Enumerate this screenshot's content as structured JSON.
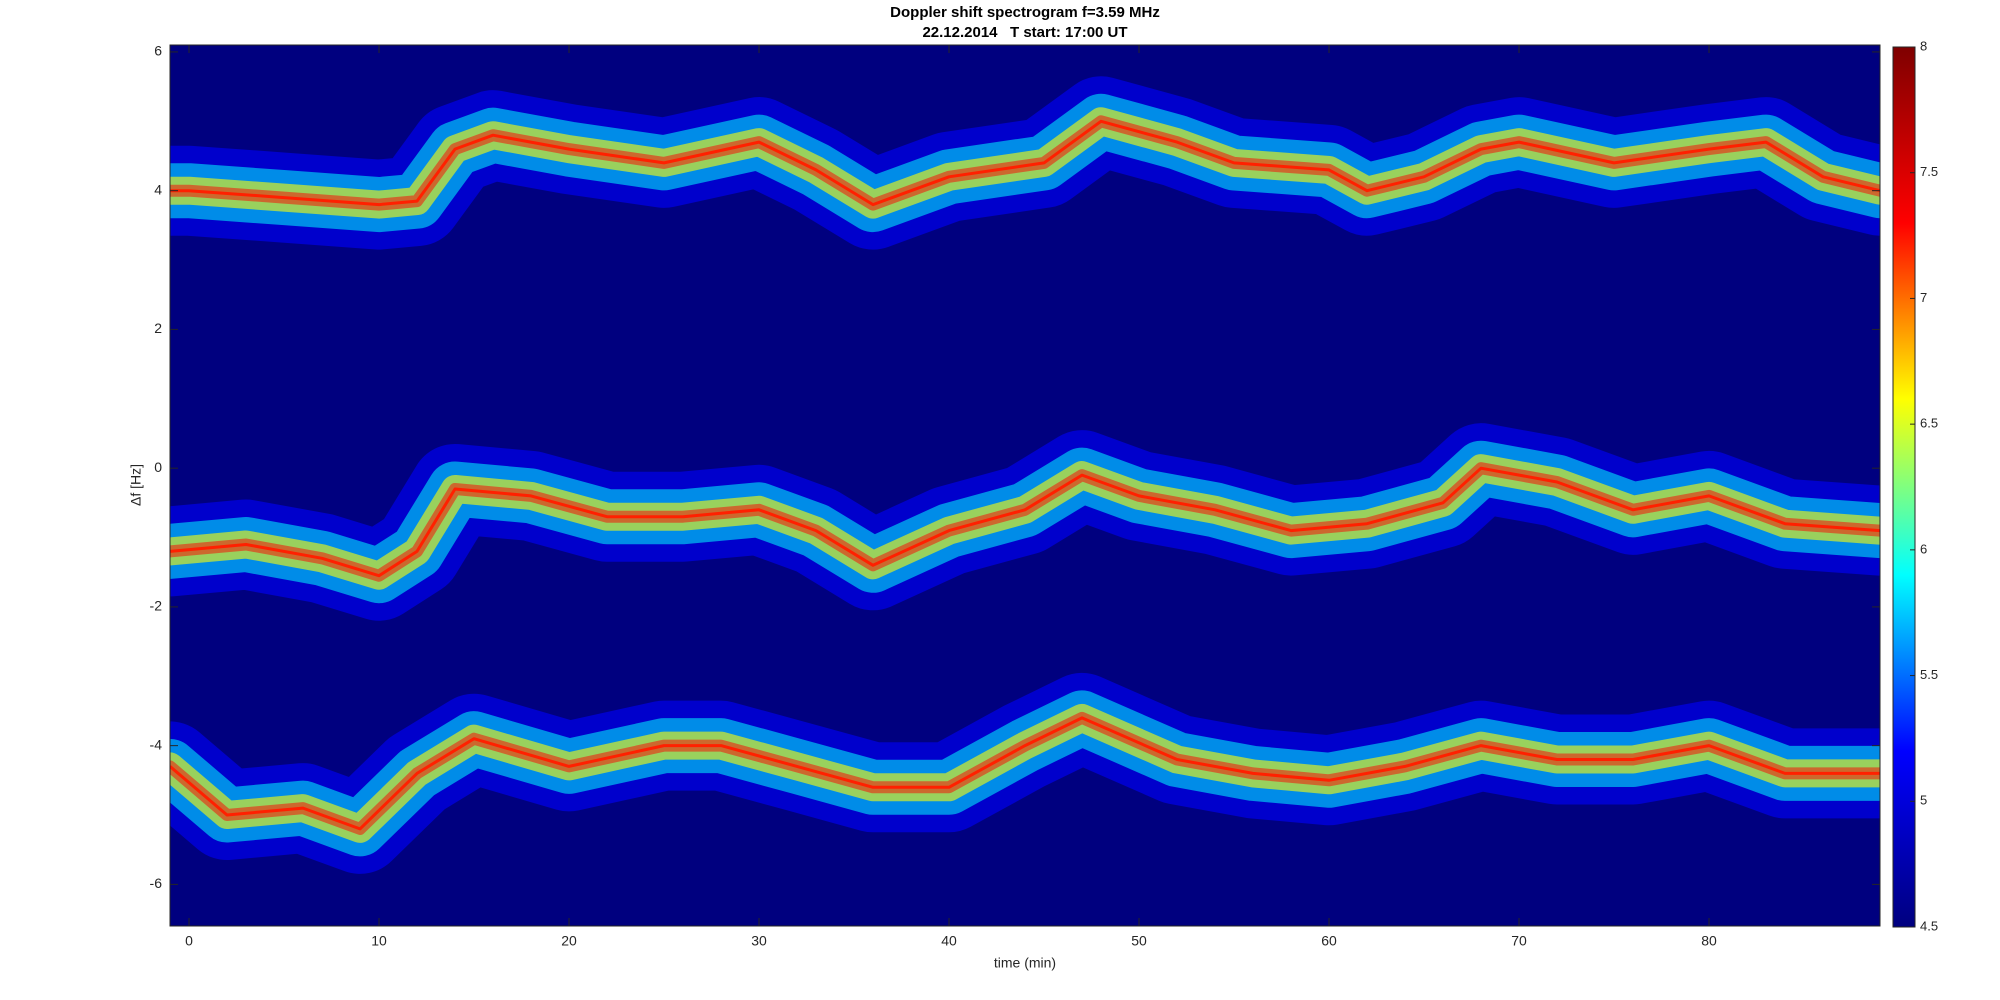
{
  "chart_data": {
    "type": "spectrogram",
    "title": "Doppler shift spectrogram f=3.59 MHz",
    "subtitle": "22.12.2014   T start: 17:00 UT",
    "x_label": "time (min)",
    "y_label": "Δf [Hz]",
    "xlim": [
      -1,
      89
    ],
    "xticks": [
      0,
      10,
      20,
      30,
      40,
      50,
      60,
      70,
      80
    ],
    "ylim": [
      -6.6,
      6.1
    ],
    "yticks": [
      -6,
      -4,
      -2,
      0,
      2,
      4,
      6
    ],
    "colormap": [
      "#00007f",
      "#0000ff",
      "#00ffff",
      "#ffff00",
      "#ff0000",
      "#7f0000"
    ],
    "clim": [
      4.5,
      8
    ],
    "cticks": [
      4.5,
      5,
      5.5,
      6,
      6.5,
      7,
      7.5,
      8
    ],
    "series": [
      {
        "color": "#ff2000",
        "x": [
          -1,
          0,
          5,
          10,
          12,
          14,
          16,
          20,
          25,
          30,
          33,
          36,
          40,
          45,
          48,
          52,
          55,
          60,
          62,
          65,
          68,
          70,
          75,
          80,
          83,
          86,
          89
        ],
        "y": [
          4.0,
          4.0,
          3.9,
          3.8,
          3.85,
          4.6,
          4.8,
          4.6,
          4.4,
          4.7,
          4.3,
          3.8,
          4.2,
          4.4,
          5.0,
          4.7,
          4.4,
          4.3,
          4.0,
          4.2,
          4.6,
          4.7,
          4.4,
          4.6,
          4.7,
          4.2,
          4.0
        ]
      },
      {
        "color": "#ff2000",
        "x": [
          -1,
          3,
          7,
          10,
          12,
          14,
          18,
          22,
          26,
          30,
          33,
          36,
          40,
          44,
          47,
          50,
          54,
          58,
          62,
          66,
          68,
          72,
          76,
          80,
          84,
          89
        ],
        "y": [
          -1.2,
          -1.1,
          -1.3,
          -1.55,
          -1.2,
          -0.3,
          -0.4,
          -0.7,
          -0.7,
          -0.6,
          -0.9,
          -1.4,
          -0.9,
          -0.6,
          -0.1,
          -0.4,
          -0.6,
          -0.9,
          -0.8,
          -0.5,
          0,
          -0.2,
          -0.6,
          -0.4,
          -0.8,
          -0.9
        ]
      },
      {
        "color": "#ff2000",
        "x": [
          -1,
          2,
          6,
          9,
          12,
          15,
          20,
          25,
          28,
          32,
          36,
          40,
          44,
          47,
          52,
          56,
          60,
          64,
          68,
          72,
          76,
          80,
          84,
          89
        ],
        "y": [
          -4.3,
          -5.0,
          -4.9,
          -5.2,
          -4.4,
          -3.9,
          -4.3,
          -4.0,
          -4.0,
          -4.3,
          -4.6,
          -4.6,
          -4.0,
          -3.6,
          -4.2,
          -4.4,
          -4.5,
          -4.3,
          -4.0,
          -4.2,
          -4.2,
          -4.0,
          -4.4,
          -4.4
        ]
      }
    ]
  }
}
